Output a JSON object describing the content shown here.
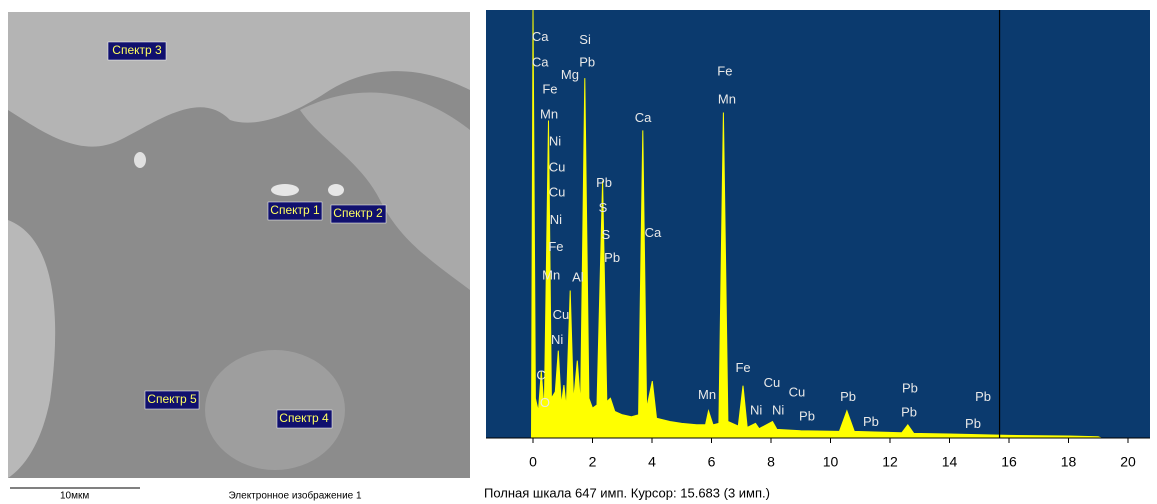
{
  "image": {
    "labels": [
      "Спектр 1",
      "Спектр 2",
      "Спектр 3",
      "Спектр 4",
      "Спектр 5"
    ],
    "scale_bar": "10мкм",
    "caption": "Электронное изображение 1"
  },
  "chart_data": {
    "type": "area",
    "color": "#ffff00",
    "background": "#0b3a6e",
    "x": [
      -0.05,
      0.0,
      0.08,
      0.18,
      0.28,
      0.38,
      0.52,
      0.62,
      0.75,
      0.85,
      0.95,
      1.04,
      1.12,
      1.25,
      1.36,
      1.49,
      1.6,
      1.74,
      1.88,
      2.0,
      2.15,
      2.34,
      2.48,
      2.6,
      2.75,
      3.0,
      3.3,
      3.55,
      3.69,
      3.82,
      4.01,
      4.15,
      4.6,
      5.0,
      5.5,
      5.8,
      5.9,
      6.05,
      6.25,
      6.4,
      6.55,
      6.9,
      7.06,
      7.2,
      7.48,
      7.6,
      8.05,
      8.2,
      9.0,
      10.3,
      10.55,
      10.8,
      11.5,
      12.4,
      12.6,
      12.8,
      14.0,
      16.0,
      18.0,
      19.0,
      19.1
    ],
    "values": [
      0,
      647,
      60,
      40,
      101,
      40,
      480,
      60,
      70,
      132,
      50,
      80,
      45,
      223,
      55,
      117,
      50,
      544,
      60,
      45,
      50,
      389,
      55,
      60,
      40,
      35,
      32,
      35,
      465,
      45,
      86,
      30,
      25,
      22,
      20,
      20,
      41,
      20,
      22,
      492,
      25,
      18,
      79,
      16,
      22,
      14,
      25,
      13,
      11,
      10,
      41,
      10,
      9,
      8,
      20,
      7,
      6,
      4,
      3,
      2,
      0
    ],
    "xlim": [
      -1.58,
      20.74
    ],
    "ylim": [
      0,
      647
    ],
    "xticks": [
      0,
      2,
      4,
      6,
      8,
      10,
      12,
      14,
      16,
      18,
      20
    ],
    "cursor": 15.683,
    "annotations": [
      {
        "text": "Ca",
        "x": 0.24,
        "y": 605
      },
      {
        "text": "Ca",
        "x": 0.24,
        "y": 567
      },
      {
        "text": "Fe",
        "x": 0.57,
        "y": 526
      },
      {
        "text": "Mn",
        "x": 0.54,
        "y": 488
      },
      {
        "text": "Ni",
        "x": 0.74,
        "y": 447
      },
      {
        "text": "Cu",
        "x": 0.81,
        "y": 408
      },
      {
        "text": "Cu",
        "x": 0.81,
        "y": 370
      },
      {
        "text": "Ni",
        "x": 0.77,
        "y": 329
      },
      {
        "text": "Fe",
        "x": 0.77,
        "y": 288
      },
      {
        "text": "Mn",
        "x": 0.61,
        "y": 245
      },
      {
        "text": "Al",
        "x": 1.51,
        "y": 242
      },
      {
        "text": "Mg",
        "x": 1.24,
        "y": 548
      },
      {
        "text": "Si",
        "x": 1.75,
        "y": 601
      },
      {
        "text": "Pb",
        "x": 1.82,
        "y": 567
      },
      {
        "text": "Cu",
        "x": 0.94,
        "y": 185
      },
      {
        "text": "Ni",
        "x": 0.81,
        "y": 147
      },
      {
        "text": "C",
        "x": 0.27,
        "y": 94
      },
      {
        "text": "O",
        "x": 0.4,
        "y": 52
      },
      {
        "text": "Pb",
        "x": 2.39,
        "y": 385
      },
      {
        "text": "S",
        "x": 2.35,
        "y": 347
      },
      {
        "text": "S",
        "x": 2.45,
        "y": 306
      },
      {
        "text": "Pb",
        "x": 2.66,
        "y": 271
      },
      {
        "text": "Ca",
        "x": 3.7,
        "y": 483
      },
      {
        "text": "Ca",
        "x": 4.03,
        "y": 309
      },
      {
        "text": "Fe",
        "x": 6.45,
        "y": 553
      },
      {
        "text": "Mn",
        "x": 6.52,
        "y": 511
      },
      {
        "text": "Mn",
        "x": 5.85,
        "y": 64
      },
      {
        "text": "Fe",
        "x": 7.06,
        "y": 105
      },
      {
        "text": "Cu",
        "x": 8.03,
        "y": 82
      },
      {
        "text": "Ni",
        "x": 7.5,
        "y": 41
      },
      {
        "text": "Ni",
        "x": 8.24,
        "y": 41
      },
      {
        "text": "Cu",
        "x": 8.87,
        "y": 68
      },
      {
        "text": "Pb",
        "x": 9.21,
        "y": 32
      },
      {
        "text": "Pb",
        "x": 10.59,
        "y": 61
      },
      {
        "text": "Pb",
        "x": 11.36,
        "y": 23
      },
      {
        "text": "Pb",
        "x": 12.67,
        "y": 74
      },
      {
        "text": "Pb",
        "x": 12.64,
        "y": 38
      },
      {
        "text": "Pb",
        "x": 15.13,
        "y": 61
      },
      {
        "text": "Pb",
        "x": 14.79,
        "y": 20
      }
    ],
    "footer": "Полная шкала 647 имп. Курсор: 15.683 (3 имп.)"
  }
}
